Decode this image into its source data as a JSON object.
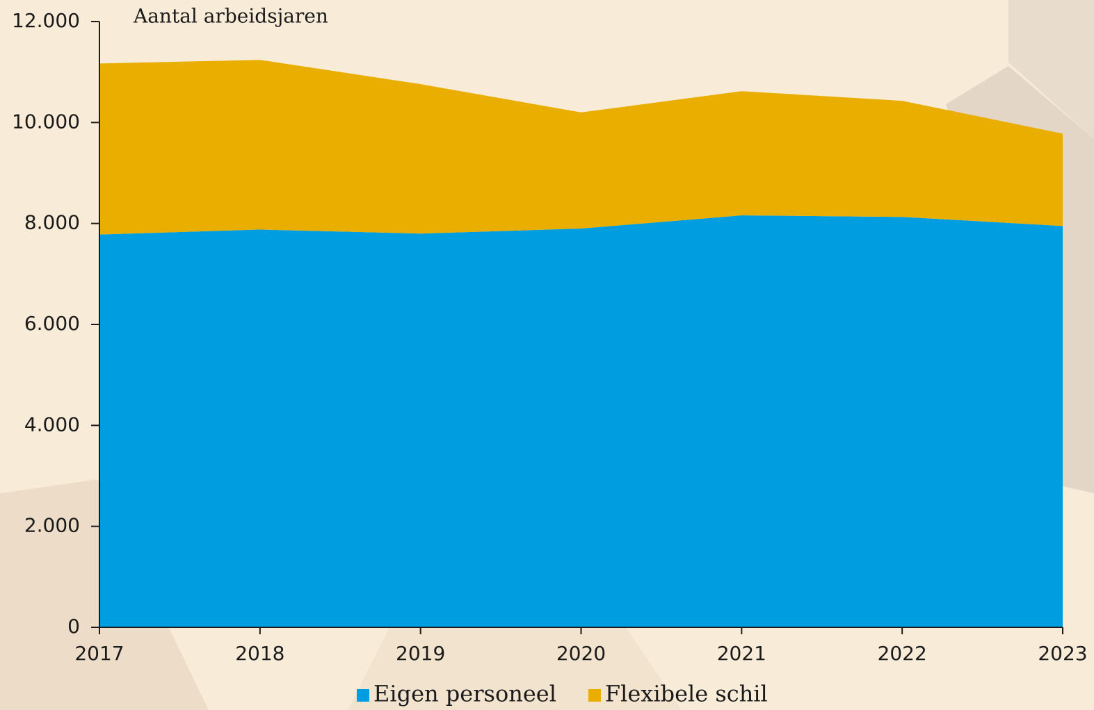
{
  "chart_data": {
    "type": "area",
    "stacked": true,
    "y_label": "Aantal arbeidsjaren",
    "categories": [
      "2017",
      "2018",
      "2019",
      "2020",
      "2021",
      "2022",
      "2023"
    ],
    "series": [
      {
        "name": "Eigen personeel",
        "color": "#009ee0",
        "values": [
          7780,
          7880,
          7800,
          7900,
          8160,
          8130,
          7950
        ]
      },
      {
        "name": "Flexibele schil",
        "color": "#e9ae00",
        "values": [
          3390,
          3360,
          2960,
          2300,
          2460,
          2300,
          1830
        ]
      }
    ],
    "ylim": [
      0,
      12000
    ],
    "yticks": [
      0,
      {
        "value": 2000,
        "label": "2.000"
      },
      {
        "value": 4000,
        "label": "4.000"
      },
      {
        "value": 6000,
        "label": "6.000"
      },
      {
        "value": 8000,
        "label": "8.000"
      },
      {
        "value": 10000,
        "label": "10.000"
      },
      {
        "value": 12000,
        "label": "12.000"
      }
    ],
    "legend": "bottom"
  }
}
